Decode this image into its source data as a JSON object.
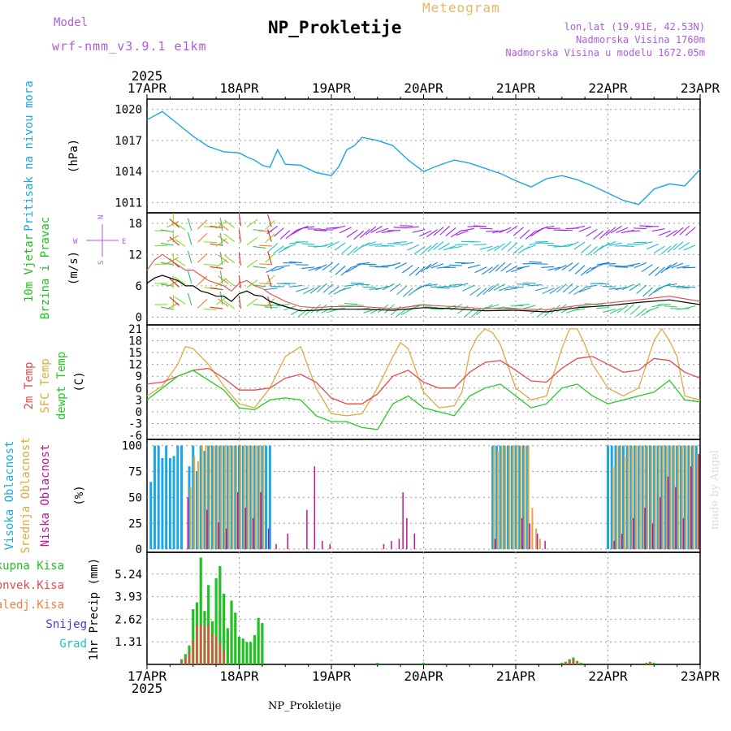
{
  "header": {
    "model_label": "Model",
    "model_name": "wrf-nmm_v3.9.1 e1km",
    "product": "Meteogram",
    "station": "NP_Prokletije",
    "lonlat": "lon,lat (19.91E, 42.53N)",
    "altitude": "Nadmorska Visina 1760m",
    "model_altitude": "Nadmorska Visina u modelu 1672.05m"
  },
  "footer": {
    "station": "NP_Prokletije",
    "credit": "made by Angel"
  },
  "colors": {
    "pressure": "#1aa7e6",
    "wind_label": "#22c122",
    "temp2m": "#e84a4a",
    "tsfc": "#e0a840",
    "dewpt": "#22cc22",
    "high_cloud": "#1aa7e6",
    "mid_cloud": "#e0a840",
    "low_cloud": "#c0139a",
    "rain_total": "#22c122",
    "rain_conv": "#e84a4a",
    "rain_frz": "#f08040",
    "snow": "#3a3ae0",
    "hail": "#20c0c0",
    "accent_purple": "#b05cd8",
    "meteo_gold": "#e0b860"
  },
  "chart_data": [
    {
      "type": "line",
      "id": "pressure",
      "ylabel_left": "Pritisak na nivou mora",
      "ylabel_unit": "(hPa)",
      "x_day_ticks": [
        "17APR",
        "18APR",
        "19APR",
        "20APR",
        "21APR",
        "22APR",
        "23APR"
      ],
      "x_year": "2025",
      "y_ticks": [
        1011,
        1014,
        1017,
        1020
      ],
      "ylim": [
        1010,
        1021
      ],
      "grid": true,
      "series": [
        {
          "x_hours": [
            0,
            4,
            8,
            12,
            16,
            20,
            24,
            26,
            28,
            30,
            32,
            34,
            36,
            40,
            44,
            48,
            50,
            52,
            54,
            56,
            60,
            64,
            68,
            72,
            76,
            80,
            84,
            88,
            92,
            96,
            100,
            104,
            108,
            112,
            116,
            120,
            124,
            128,
            132,
            136,
            140,
            144
          ],
          "values": [
            1019,
            1019.8,
            1018.6,
            1017.4,
            1016.4,
            1015.9,
            1015.8,
            1015.4,
            1015.1,
            1014.6,
            1014.4,
            1016.1,
            1014.7,
            1014.6,
            1013.9,
            1013.6,
            1014.5,
            1016.1,
            1016.5,
            1017.3,
            1017.0,
            1016.5,
            1015.1,
            1014.0,
            1014.6,
            1015.1,
            1014.8,
            1014.3,
            1013.8,
            1013.1,
            1012.5,
            1013.3,
            1013.6,
            1013.2,
            1012.6,
            1011.9,
            1011.2,
            1010.8,
            1012.3,
            1012.8,
            1012.6,
            1014.2
          ]
        }
      ]
    },
    {
      "type": "line",
      "id": "wind",
      "ylabel_left_1": "10m Vjetar",
      "ylabel_left_2": "Brzina i Pravac",
      "ylabel_unit": "(m/s)",
      "compass": {
        "n": "N",
        "s": "S",
        "e": "E",
        "w": "W"
      },
      "y_ticks": [
        0,
        6,
        12,
        18
      ],
      "ylim": [
        -1.5,
        20
      ],
      "grid": true,
      "barb_rows": [
        17,
        14,
        10,
        6,
        2
      ],
      "series": [
        {
          "name": "speed",
          "x_hours": [
            0,
            2,
            4,
            6,
            8,
            10,
            12,
            14,
            16,
            18,
            20,
            22,
            24,
            26,
            28,
            30,
            32,
            36,
            40,
            44,
            48,
            56,
            64,
            72,
            80,
            88,
            96,
            104,
            112,
            120,
            128,
            136,
            144
          ],
          "values": [
            6.5,
            7.5,
            8,
            7.5,
            7,
            6,
            6,
            5,
            4.6,
            4,
            4,
            3,
            4.5,
            5,
            4.2,
            4,
            3,
            2,
            1.2,
            1.3,
            1.5,
            1.5,
            1.3,
            1.8,
            1.6,
            1.2,
            1.3,
            1.0,
            1.8,
            2.2,
            2.8,
            3.3,
            2.4
          ]
        },
        {
          "name": "gust",
          "x_hours": [
            0,
            2,
            4,
            6,
            8,
            10,
            12,
            14,
            16,
            18,
            20,
            22,
            24,
            26,
            28,
            30,
            32,
            36,
            40,
            44,
            48,
            56,
            64,
            72,
            80,
            88,
            96,
            104,
            112,
            120,
            128,
            136,
            144
          ],
          "values": [
            9,
            11,
            12,
            11,
            10,
            9,
            9,
            8,
            7,
            6.5,
            6,
            5,
            6.5,
            7,
            6,
            5.5,
            4.5,
            3,
            2,
            1.8,
            2,
            2,
            1.6,
            2.3,
            2,
            1.6,
            1.6,
            1.4,
            2.2,
            2.7,
            3.3,
            4,
            3
          ]
        }
      ]
    },
    {
      "type": "line",
      "id": "temperature",
      "ylabel_left_1": "2m Temp",
      "ylabel_left_2": "SFC Temp",
      "ylabel_left_3": "dewpt Temp",
      "ylabel_unit": "(C)",
      "y_ticks": [
        -6,
        -3,
        0,
        3,
        6,
        9,
        12,
        15,
        18,
        21
      ],
      "ylim": [
        -7,
        22
      ],
      "grid": true,
      "series": [
        {
          "name": "2m Temp",
          "x_hours": [
            0,
            4,
            8,
            12,
            16,
            20,
            24,
            28,
            32,
            36,
            40,
            44,
            48,
            52,
            56,
            60,
            64,
            68,
            72,
            76,
            80,
            84,
            88,
            92,
            96,
            100,
            104,
            108,
            112,
            116,
            120,
            124,
            128,
            132,
            136,
            140,
            144
          ],
          "values": [
            7,
            7.5,
            9,
            10.5,
            11,
            8.5,
            5.5,
            5.5,
            6,
            8.5,
            9.5,
            7.5,
            3.5,
            2,
            2,
            4.5,
            9,
            10.5,
            7.5,
            6,
            6,
            10,
            12.5,
            13,
            10.5,
            7.8,
            7.5,
            11,
            13.5,
            14,
            12,
            10,
            10.5,
            13.5,
            13,
            10,
            8.5
          ]
        },
        {
          "name": "SFC Temp",
          "x_hours": [
            0,
            4,
            8,
            10,
            12,
            16,
            20,
            24,
            28,
            32,
            36,
            40,
            44,
            48,
            52,
            56,
            60,
            64,
            66,
            68,
            72,
            76,
            80,
            82,
            84,
            86,
            88,
            90,
            92,
            96,
            100,
            104,
            106,
            108,
            110,
            112,
            114,
            116,
            120,
            124,
            128,
            130,
            132,
            134,
            136,
            138,
            140,
            144
          ],
          "values": [
            4,
            6.5,
            12,
            16.5,
            16,
            12,
            6.5,
            2,
            1,
            6,
            14,
            16.5,
            6,
            -0.5,
            -1,
            -0.5,
            6,
            14,
            17.5,
            16,
            5,
            1,
            1.5,
            5,
            15,
            19,
            21,
            20,
            17,
            6,
            3,
            4,
            10,
            16,
            21,
            21,
            17,
            12,
            6,
            4,
            6,
            12,
            18,
            21,
            18,
            14,
            4,
            3
          ]
        },
        {
          "name": "dewpt Temp",
          "x_hours": [
            0,
            4,
            8,
            12,
            16,
            20,
            24,
            28,
            32,
            36,
            40,
            44,
            48,
            52,
            56,
            60,
            64,
            68,
            72,
            76,
            80,
            84,
            88,
            92,
            96,
            100,
            104,
            108,
            112,
            116,
            120,
            124,
            128,
            132,
            136,
            140,
            144
          ],
          "values": [
            3,
            6,
            9,
            10.5,
            8,
            5.5,
            1,
            0.5,
            3,
            3.5,
            3,
            -1,
            -2.5,
            -2.5,
            -4,
            -4.5,
            2,
            4,
            1,
            0,
            -1,
            4,
            6,
            7,
            4,
            1,
            2,
            6,
            7,
            4,
            2,
            3,
            4,
            5,
            8,
            3,
            2.5
          ]
        }
      ]
    },
    {
      "type": "bar",
      "id": "clouds",
      "ylabel_left_1": "Visoka Oblacnost",
      "ylabel_left_2": "Srednja Oblacnost",
      "ylabel_left_3": "Niska Oblacnost",
      "ylabel_unit": "(%)",
      "y_ticks": [
        0,
        25,
        50,
        75,
        100
      ],
      "ylim": [
        -3,
        106
      ],
      "grid": true,
      "series": [
        {
          "name": "Visoka Oblacnost",
          "x_hours": [
            1,
            2,
            3,
            4,
            5,
            6,
            7,
            8,
            9,
            10,
            11,
            12,
            13,
            14,
            15,
            16,
            17,
            18,
            19,
            20,
            21,
            22,
            23,
            24,
            25,
            26,
            27,
            28,
            29,
            30,
            31,
            32,
            90,
            91,
            92,
            93,
            94,
            95,
            96,
            97,
            98,
            99,
            120,
            121,
            122,
            123,
            124,
            125,
            126,
            127,
            128,
            129,
            130,
            131,
            132,
            133,
            134,
            135,
            136,
            137,
            138,
            139,
            140,
            141,
            142,
            143
          ],
          "values": [
            65,
            100,
            100,
            88,
            100,
            88,
            90,
            100,
            100,
            0,
            80,
            100,
            75,
            100,
            95,
            100,
            100,
            100,
            100,
            100,
            100,
            100,
            100,
            100,
            100,
            100,
            100,
            100,
            100,
            100,
            100,
            100,
            100,
            100,
            100,
            100,
            100,
            100,
            100,
            100,
            100,
            100,
            100,
            100,
            100,
            100,
            100,
            100,
            100,
            100,
            100,
            100,
            100,
            100,
            100,
            100,
            100,
            100,
            100,
            100,
            100,
            100,
            100,
            100,
            100,
            100
          ]
        },
        {
          "name": "Srednja Oblacnost",
          "x_hours": [
            11,
            12,
            13,
            14,
            15,
            16,
            17,
            18,
            19,
            20,
            21,
            22,
            23,
            24,
            25,
            26,
            27,
            28,
            29,
            30,
            90,
            91,
            92,
            93,
            94,
            95,
            96,
            97,
            98,
            99,
            100,
            101,
            102,
            121,
            122,
            123,
            124,
            125,
            126,
            127,
            128,
            129,
            130,
            131,
            132,
            133,
            134,
            135,
            136,
            137,
            138,
            139,
            140,
            141,
            142,
            143
          ],
          "values": [
            60,
            90,
            85,
            100,
            100,
            100,
            100,
            100,
            100,
            100,
            100,
            100,
            100,
            100,
            100,
            100,
            100,
            100,
            100,
            100,
            100,
            95,
            100,
            100,
            100,
            100,
            100,
            100,
            100,
            100,
            40,
            20,
            10,
            80,
            100,
            100,
            90,
            100,
            100,
            100,
            100,
            100,
            100,
            100,
            100,
            100,
            100,
            100,
            100,
            100,
            100,
            100,
            100,
            100,
            100,
            92
          ]
        },
        {
          "name": "Niska Oblacnost",
          "x_hours": [
            10,
            15,
            18,
            20,
            23,
            25,
            27,
            29,
            31,
            33,
            36,
            41,
            43,
            45,
            47,
            61,
            63,
            65,
            66,
            67,
            69,
            90,
            97,
            99,
            101,
            103,
            121,
            123,
            126,
            129,
            131,
            133,
            135,
            137,
            139,
            141,
            143
          ],
          "values": [
            50,
            38,
            26,
            20,
            55,
            40,
            30,
            55,
            20,
            5,
            15,
            38,
            80,
            8,
            5,
            5,
            8,
            10,
            55,
            30,
            15,
            10,
            30,
            25,
            15,
            8,
            8,
            15,
            30,
            40,
            25,
            50,
            70,
            60,
            30,
            80,
            92
          ]
        }
      ]
    },
    {
      "type": "bar",
      "id": "precip",
      "legend": [
        "Ukupna Kisa",
        "Konvek.Kisa",
        "Zaledj.Kisa",
        "Snijeg",
        "Grad"
      ],
      "ylabel_unit": "1hr Precip (mm)",
      "y_ticks": [
        1.31,
        2.62,
        3.93,
        5.24
      ],
      "ylim": [
        0,
        6.5
      ],
      "grid": true,
      "series": [
        {
          "name": "Ukupna Kisa",
          "x_hours": [
            9,
            10,
            11,
            12,
            13,
            14,
            15,
            16,
            17,
            18,
            19,
            20,
            21,
            22,
            23,
            24,
            25,
            26,
            27,
            28,
            29,
            30,
            60,
            72,
            108,
            109,
            110,
            111,
            112,
            113,
            130,
            131,
            132
          ],
          "values": [
            0.3,
            0.6,
            1.1,
            3.2,
            3.6,
            6.2,
            3.1,
            4.6,
            2.5,
            5.0,
            5.7,
            4.1,
            2.1,
            3.7,
            3.0,
            1.6,
            1.5,
            1.3,
            1.3,
            1.7,
            2.7,
            2.4,
            0.1,
            0.1,
            0.1,
            0.15,
            0.3,
            0.4,
            0.2,
            0.1,
            0.1,
            0.15,
            0.1
          ]
        },
        {
          "name": "Konvek.Kisa",
          "x_hours": [
            9,
            10,
            11,
            12,
            13,
            14,
            15,
            16,
            17,
            18,
            19,
            20,
            108,
            109,
            110,
            111,
            112,
            130,
            131
          ],
          "values": [
            0.2,
            0.4,
            0.7,
            1.4,
            2.3,
            2.3,
            2.2,
            2.3,
            1.8,
            1.6,
            1.2,
            0.8,
            0.05,
            0.1,
            0.25,
            0.3,
            0.15,
            0.05,
            0.1
          ]
        }
      ]
    }
  ]
}
